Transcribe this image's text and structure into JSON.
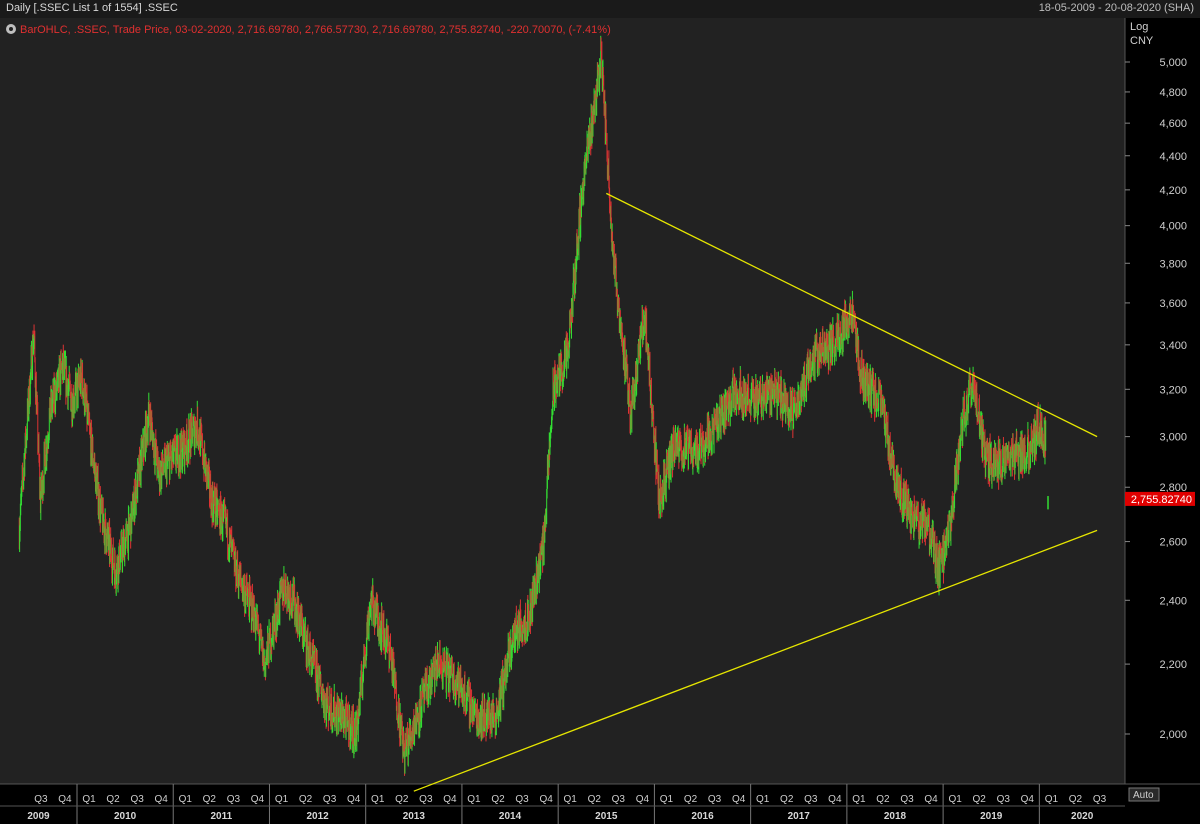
{
  "header": {
    "title": "Daily [.SSEC List 1 of 1554] .SSEC",
    "date_range": "18-05-2009 - 20-08-2020 (SHA)"
  },
  "legend": {
    "icon": "gear-icon",
    "text": "BarOHLC, .SSEC, Trade Price, 03-02-2020, 2,716.69780, 2,766.57730, 2,716.69780, 2,755.82740, -220.70070, (-7.41%)",
    "color": "#e03030"
  },
  "axis": {
    "scale_label": "Log",
    "unit_label": "CNY",
    "auto_label": "Auto",
    "y_ticks": [
      "5,000",
      "4,800",
      "4,600",
      "4,400",
      "4,200",
      "4,000",
      "3,800",
      "3,600",
      "3,400",
      "3,200",
      "3,000",
      "2,800",
      "2,600",
      "2,400",
      "2,200",
      "2,000"
    ],
    "last_price_label": "2,755.82740"
  },
  "chart_data": {
    "type": "line",
    "title": "",
    "y_scale": "log",
    "ylim": [
      1850,
      5200
    ],
    "grid": false,
    "last_price": 2755.8274,
    "quarters": [
      {
        "label": "Q3",
        "year": "2009"
      },
      {
        "label": "Q4",
        "year": "2009"
      },
      {
        "label": "Q1",
        "year": "2010"
      },
      {
        "label": "Q2",
        "year": "2010"
      },
      {
        "label": "Q3",
        "year": "2010"
      },
      {
        "label": "Q4",
        "year": "2010"
      },
      {
        "label": "Q1",
        "year": "2011"
      },
      {
        "label": "Q2",
        "year": "2011"
      },
      {
        "label": "Q3",
        "year": "2011"
      },
      {
        "label": "Q4",
        "year": "2011"
      },
      {
        "label": "Q1",
        "year": "2012"
      },
      {
        "label": "Q2",
        "year": "2012"
      },
      {
        "label": "Q3",
        "year": "2012"
      },
      {
        "label": "Q4",
        "year": "2012"
      },
      {
        "label": "Q1",
        "year": "2013"
      },
      {
        "label": "Q2",
        "year": "2013"
      },
      {
        "label": "Q3",
        "year": "2013"
      },
      {
        "label": "Q4",
        "year": "2013"
      },
      {
        "label": "Q1",
        "year": "2014"
      },
      {
        "label": "Q2",
        "year": "2014"
      },
      {
        "label": "Q3",
        "year": "2014"
      },
      {
        "label": "Q4",
        "year": "2014"
      },
      {
        "label": "Q1",
        "year": "2015"
      },
      {
        "label": "Q2",
        "year": "2015"
      },
      {
        "label": "Q3",
        "year": "2015"
      },
      {
        "label": "Q4",
        "year": "2015"
      },
      {
        "label": "Q1",
        "year": "2016"
      },
      {
        "label": "Q2",
        "year": "2016"
      },
      {
        "label": "Q3",
        "year": "2016"
      },
      {
        "label": "Q4",
        "year": "2016"
      },
      {
        "label": "Q1",
        "year": "2017"
      },
      {
        "label": "Q2",
        "year": "2017"
      },
      {
        "label": "Q3",
        "year": "2017"
      },
      {
        "label": "Q4",
        "year": "2017"
      },
      {
        "label": "Q1",
        "year": "2018"
      },
      {
        "label": "Q2",
        "year": "2018"
      },
      {
        "label": "Q3",
        "year": "2018"
      },
      {
        "label": "Q4",
        "year": "2018"
      },
      {
        "label": "Q1",
        "year": "2019"
      },
      {
        "label": "Q2",
        "year": "2019"
      },
      {
        "label": "Q3",
        "year": "2019"
      },
      {
        "label": "Q4",
        "year": "2019"
      },
      {
        "label": "Q1",
        "year": "2020"
      },
      {
        "label": "Q2",
        "year": "2020"
      },
      {
        "label": "Q3",
        "year": "2020"
      }
    ],
    "years": [
      "2009",
      "2010",
      "2011",
      "2012",
      "2013",
      "2014",
      "2015",
      "2016",
      "2017",
      "2018",
      "2019",
      "2020"
    ],
    "series": [
      {
        "values": [
          [
            2009.4,
            2650
          ],
          [
            2009.55,
            3450
          ],
          [
            2009.62,
            2750
          ],
          [
            2009.72,
            3100
          ],
          [
            2009.85,
            3300
          ],
          [
            2009.95,
            3150
          ],
          [
            2010.05,
            3250
          ],
          [
            2010.25,
            2700
          ],
          [
            2010.4,
            2500
          ],
          [
            2010.55,
            2650
          ],
          [
            2010.75,
            3100
          ],
          [
            2010.85,
            2850
          ],
          [
            2010.95,
            2900
          ],
          [
            2011.1,
            2950
          ],
          [
            2011.25,
            3050
          ],
          [
            2011.4,
            2750
          ],
          [
            2011.55,
            2650
          ],
          [
            2011.65,
            2500
          ],
          [
            2011.85,
            2350
          ],
          [
            2011.95,
            2200
          ],
          [
            2012.15,
            2450
          ],
          [
            2012.25,
            2400
          ],
          [
            2012.45,
            2200
          ],
          [
            2012.6,
            2080
          ],
          [
            2012.75,
            2050
          ],
          [
            2012.9,
            2000
          ],
          [
            2013.05,
            2400
          ],
          [
            2013.25,
            2250
          ],
          [
            2013.4,
            1950
          ],
          [
            2013.6,
            2100
          ],
          [
            2013.75,
            2200
          ],
          [
            2013.95,
            2150
          ],
          [
            2014.15,
            2050
          ],
          [
            2014.35,
            2050
          ],
          [
            2014.55,
            2300
          ],
          [
            2014.7,
            2350
          ],
          [
            2014.85,
            2600
          ],
          [
            2014.95,
            3200
          ],
          [
            2015.1,
            3350
          ],
          [
            2015.25,
            4200
          ],
          [
            2015.45,
            5050
          ],
          [
            2015.5,
            4500
          ],
          [
            2015.58,
            3800
          ],
          [
            2015.65,
            3500
          ],
          [
            2015.75,
            3100
          ],
          [
            2015.9,
            3550
          ],
          [
            2016.05,
            2750
          ],
          [
            2016.2,
            2950
          ],
          [
            2016.45,
            2950
          ],
          [
            2016.65,
            3050
          ],
          [
            2016.85,
            3200
          ],
          [
            2017.0,
            3150
          ],
          [
            2017.25,
            3200
          ],
          [
            2017.45,
            3100
          ],
          [
            2017.65,
            3350
          ],
          [
            2017.85,
            3400
          ],
          [
            2018.05,
            3550
          ],
          [
            2018.15,
            3250
          ],
          [
            2018.35,
            3150
          ],
          [
            2018.5,
            2850
          ],
          [
            2018.65,
            2700
          ],
          [
            2018.85,
            2650
          ],
          [
            2018.95,
            2500
          ],
          [
            2019.05,
            2600
          ],
          [
            2019.2,
            3050
          ],
          [
            2019.3,
            3250
          ],
          [
            2019.45,
            2900
          ],
          [
            2019.6,
            2900
          ],
          [
            2019.75,
            2930
          ],
          [
            2019.9,
            2950
          ],
          [
            2020.0,
            3050
          ],
          [
            2020.07,
            2980
          ]
        ]
      }
    ],
    "trendlines": [
      {
        "color": "#e6e600",
        "points": [
          [
            2015.5,
            4180
          ],
          [
            2020.6,
            3000
          ]
        ]
      },
      {
        "color": "#e6e600",
        "points": [
          [
            2013.5,
            1850
          ],
          [
            2020.6,
            2640
          ]
        ]
      }
    ]
  }
}
